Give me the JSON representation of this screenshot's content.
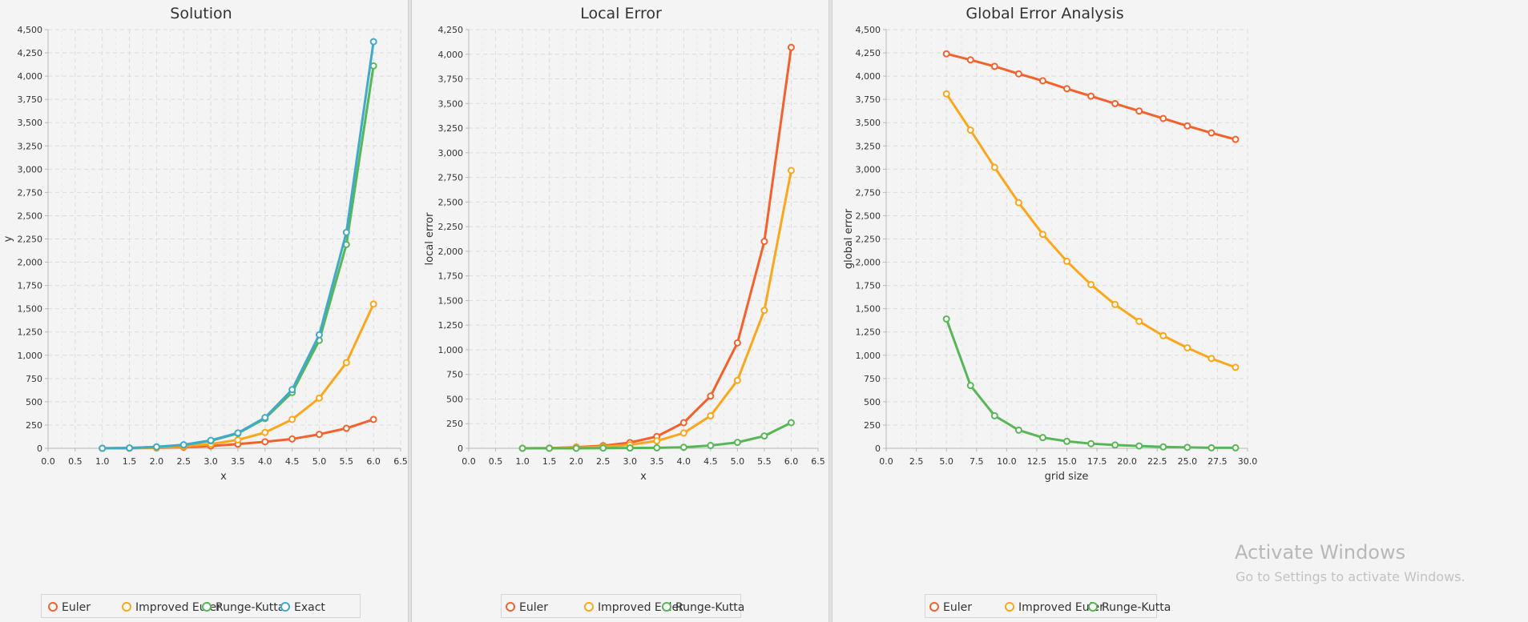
{
  "series_colors": {
    "Euler": "#f3622d",
    "Improved Euler": "#fba71b",
    "Runge-Kutta": "#57b757",
    "Exact": "#41a9c9"
  },
  "watermark": {
    "line1": "Activate Windows",
    "line2": "Go to Settings to activate Windows."
  },
  "chart_data": [
    {
      "type": "line",
      "title": "Solution",
      "xlabel": "x",
      "ylabel": "y",
      "xlim": [
        0,
        6.5
      ],
      "ylim": [
        0,
        4500
      ],
      "xticks": [
        0,
        0.5,
        1,
        1.5,
        2,
        2.5,
        3,
        3.5,
        4,
        4.5,
        5,
        5.5,
        6,
        6.5
      ],
      "yticks": [
        0,
        250,
        500,
        750,
        1000,
        1250,
        1500,
        1750,
        2000,
        2250,
        2500,
        2750,
        3000,
        3250,
        3500,
        3750,
        4000,
        4250,
        4500
      ],
      "x": [
        1,
        1.5,
        2,
        2.5,
        3,
        3.5,
        4,
        4.5,
        5,
        5.5,
        6
      ],
      "series": [
        {
          "name": "Euler",
          "values": [
            0,
            1,
            4,
            12,
            25,
            45,
            70,
            100,
            150,
            215,
            310
          ]
        },
        {
          "name": "Improved Euler",
          "values": [
            0,
            2,
            7,
            20,
            45,
            90,
            170,
            310,
            540,
            920,
            1550
          ]
        },
        {
          "name": "Runge-Kutta",
          "values": [
            0,
            3,
            15,
            35,
            80,
            160,
            320,
            600,
            1160,
            2190,
            4110
          ]
        },
        {
          "name": "Exact",
          "values": [
            0,
            3,
            15,
            38,
            85,
            165,
            330,
            630,
            1220,
            2320,
            4370
          ]
        }
      ],
      "grid": true,
      "legend": "bottom"
    },
    {
      "type": "line",
      "title": "Local Error",
      "xlabel": "x",
      "ylabel": "local error",
      "xlim": [
        0,
        6.5
      ],
      "ylim": [
        0,
        4250
      ],
      "xticks": [
        0,
        0.5,
        1,
        1.5,
        2,
        2.5,
        3,
        3.5,
        4,
        4.5,
        5,
        5.5,
        6,
        6.5
      ],
      "yticks": [
        0,
        250,
        500,
        750,
        1000,
        1250,
        1500,
        1750,
        2000,
        2250,
        2500,
        2750,
        3000,
        3250,
        3500,
        3750,
        4000,
        4250
      ],
      "x": [
        1,
        1.5,
        2,
        2.5,
        3,
        3.5,
        4,
        4.5,
        5,
        5.5,
        6
      ],
      "series": [
        {
          "name": "Euler",
          "values": [
            0,
            2,
            11,
            26,
            58,
            120,
            260,
            530,
            1070,
            2100,
            4070
          ]
        },
        {
          "name": "Improved Euler",
          "values": [
            0,
            1,
            7,
            15,
            35,
            75,
            155,
            330,
            690,
            1400,
            2820
          ]
        },
        {
          "name": "Runge-Kutta",
          "values": [
            0,
            0,
            0,
            2,
            3,
            5,
            10,
            28,
            60,
            125,
            260
          ]
        }
      ],
      "grid": true,
      "legend": "bottom"
    },
    {
      "type": "line",
      "title": "Global Error Analysis",
      "xlabel": "grid size",
      "ylabel": "global error",
      "xlim": [
        0,
        30
      ],
      "ylim": [
        0,
        4500
      ],
      "xticks": [
        0,
        2.5,
        5,
        7.5,
        10,
        12.5,
        15,
        17.5,
        20,
        22.5,
        25,
        27.5,
        30
      ],
      "xtick_labels": [
        "0.0",
        "2.5",
        "5.0",
        "7.5",
        "10.0",
        "12.5",
        "15.0",
        "17.5",
        "20.0",
        "22.5",
        "25.0",
        "27.5",
        "30.0"
      ],
      "yticks": [
        0,
        250,
        500,
        750,
        1000,
        1250,
        1500,
        1750,
        2000,
        2250,
        2500,
        2750,
        3000,
        3250,
        3500,
        3750,
        4000,
        4250,
        4500
      ],
      "x": [
        5,
        7,
        9,
        11,
        13,
        15,
        17,
        19,
        21,
        23,
        25,
        27,
        29
      ],
      "series": [
        {
          "name": "Euler",
          "values": [
            4240,
            4175,
            4105,
            4025,
            3950,
            3865,
            3785,
            3705,
            3625,
            3545,
            3465,
            3390,
            3320
          ]
        },
        {
          "name": "Improved Euler",
          "values": [
            3810,
            3420,
            3020,
            2640,
            2300,
            2010,
            1760,
            1545,
            1365,
            1210,
            1080,
            965,
            870
          ]
        },
        {
          "name": "Runge-Kutta",
          "values": [
            1390,
            675,
            350,
            195,
            115,
            75,
            50,
            35,
            25,
            15,
            10,
            5,
            5
          ]
        }
      ],
      "grid": true,
      "legend": "bottom"
    }
  ]
}
